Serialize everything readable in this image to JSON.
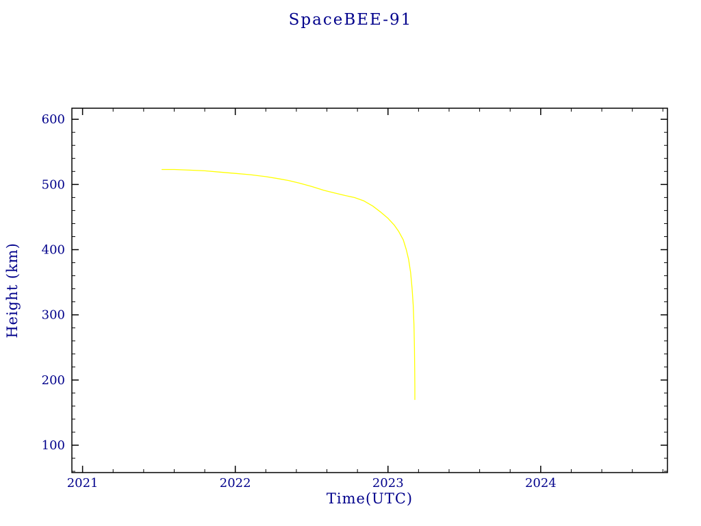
{
  "chart_data": {
    "type": "line",
    "title": "SpaceBEE-91",
    "xlabel": "Time(UTC)",
    "ylabel": "Height (km)",
    "xlim": [
      2020.93,
      2024.83
    ],
    "ylim": [
      58,
      617
    ],
    "x_ticks": [
      2021,
      2022,
      2023,
      2024
    ],
    "y_ticks": [
      100,
      200,
      300,
      400,
      500,
      600
    ],
    "x_minor_step": 0.2,
    "y_minor_step": 20,
    "grid": false,
    "legend": "none",
    "colors": {
      "line": "#ffff00",
      "text": "#00008b",
      "axis": "#000000",
      "background": "#ffffff"
    },
    "series": [
      {
        "name": "height",
        "x": [
          2021.52,
          2021.6,
          2021.7,
          2021.8,
          2021.9,
          2022.0,
          2022.1,
          2022.2,
          2022.28,
          2022.35,
          2022.42,
          2022.5,
          2022.58,
          2022.65,
          2022.72,
          2022.78,
          2022.84,
          2022.9,
          2022.95,
          2023.0,
          2023.04,
          2023.07,
          2023.1,
          2023.12,
          2023.135,
          2023.148,
          2023.158,
          2023.165,
          2023.17,
          2023.173,
          2023.175,
          2023.176,
          2023.176
        ],
        "y": [
          523,
          523,
          522,
          521,
          519,
          517,
          515,
          512,
          509,
          506,
          502,
          497,
          491,
          487,
          483,
          480,
          475,
          467,
          458,
          448,
          438,
          428,
          415,
          400,
          385,
          365,
          340,
          315,
          285,
          250,
          215,
          190,
          170
        ]
      }
    ]
  }
}
